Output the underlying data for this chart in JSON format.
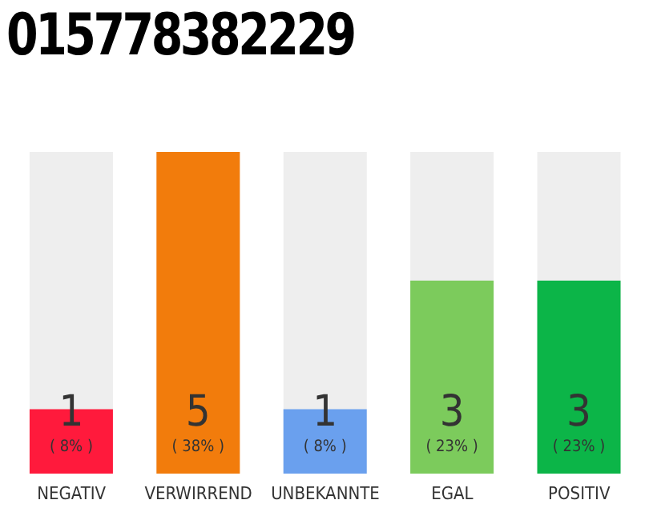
{
  "chart_data": {
    "type": "bar",
    "title": "015778382229",
    "categories": [
      "NEGATIV",
      "VERWIRREND",
      "UNBEKANNTE",
      "EGAL",
      "POSITIV"
    ],
    "values": [
      1,
      5,
      1,
      3,
      3
    ],
    "colors": [
      "#ff1a3c",
      "#f27c0c",
      "#6aa0ee",
      "#7ccb5c",
      "#0cb548"
    ],
    "ylim": [
      0,
      5
    ],
    "tick_labels": "x",
    "data_labels": true,
    "annotations": [
      "( 8% )",
      "( 38% )",
      "( 8% )",
      "( 23% )",
      "( 23% )"
    ]
  }
}
